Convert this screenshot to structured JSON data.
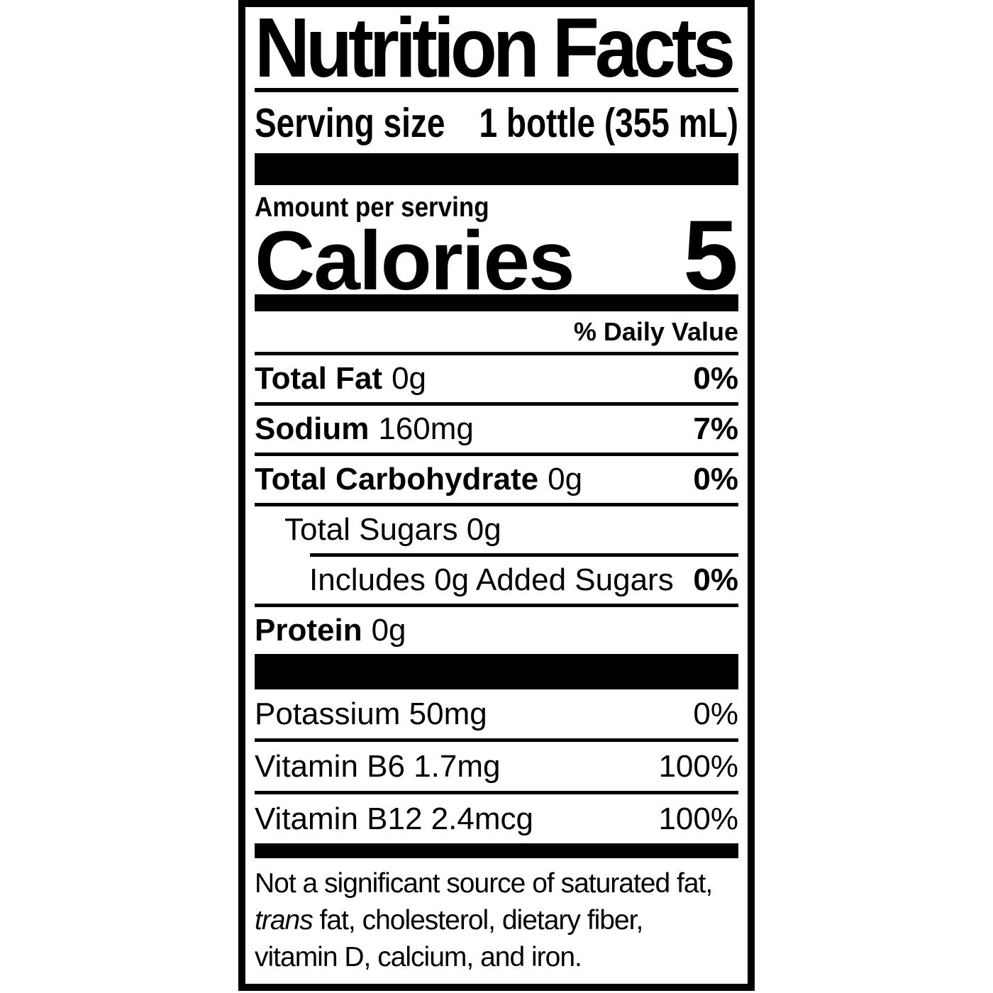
{
  "colors": {
    "ink": "#000000",
    "paper": "#ffffff"
  },
  "label": {
    "title": "Nutrition Facts",
    "serving": {
      "label": "Serving size",
      "value": "1 bottle (355 mL)"
    },
    "amount_per_serving": "Amount per serving",
    "calories": {
      "label": "Calories",
      "value": "5"
    },
    "daily_value_header": "% Daily Value",
    "nutrients": [
      {
        "name": "Total Fat",
        "amount": "0g",
        "dv": "0%"
      },
      {
        "name": "Sodium",
        "amount": "160mg",
        "dv": "7%"
      },
      {
        "name": "Total Carbohydrate",
        "amount": "0g",
        "dv": "0%"
      },
      {
        "name": "Total Sugars 0g",
        "amount": "",
        "dv": ""
      },
      {
        "name": "Includes 0g Added Sugars",
        "amount": "",
        "dv": "0%"
      },
      {
        "name": "Protein",
        "amount": "0g",
        "dv": ""
      }
    ],
    "micronutrients": [
      {
        "name": "Potassium 50mg",
        "dv": "0%"
      },
      {
        "name": "Vitamin B6 1.7mg",
        "dv": "100%"
      },
      {
        "name": "Vitamin B12 2.4mcg",
        "dv": "100%"
      }
    ],
    "footnote": {
      "line1": "Not a significant source of saturated fat,",
      "line2_italic": "trans",
      "line2_rest": " fat, cholesterol, dietary fiber,",
      "line3": "vitamin D, calcium, and iron."
    }
  }
}
